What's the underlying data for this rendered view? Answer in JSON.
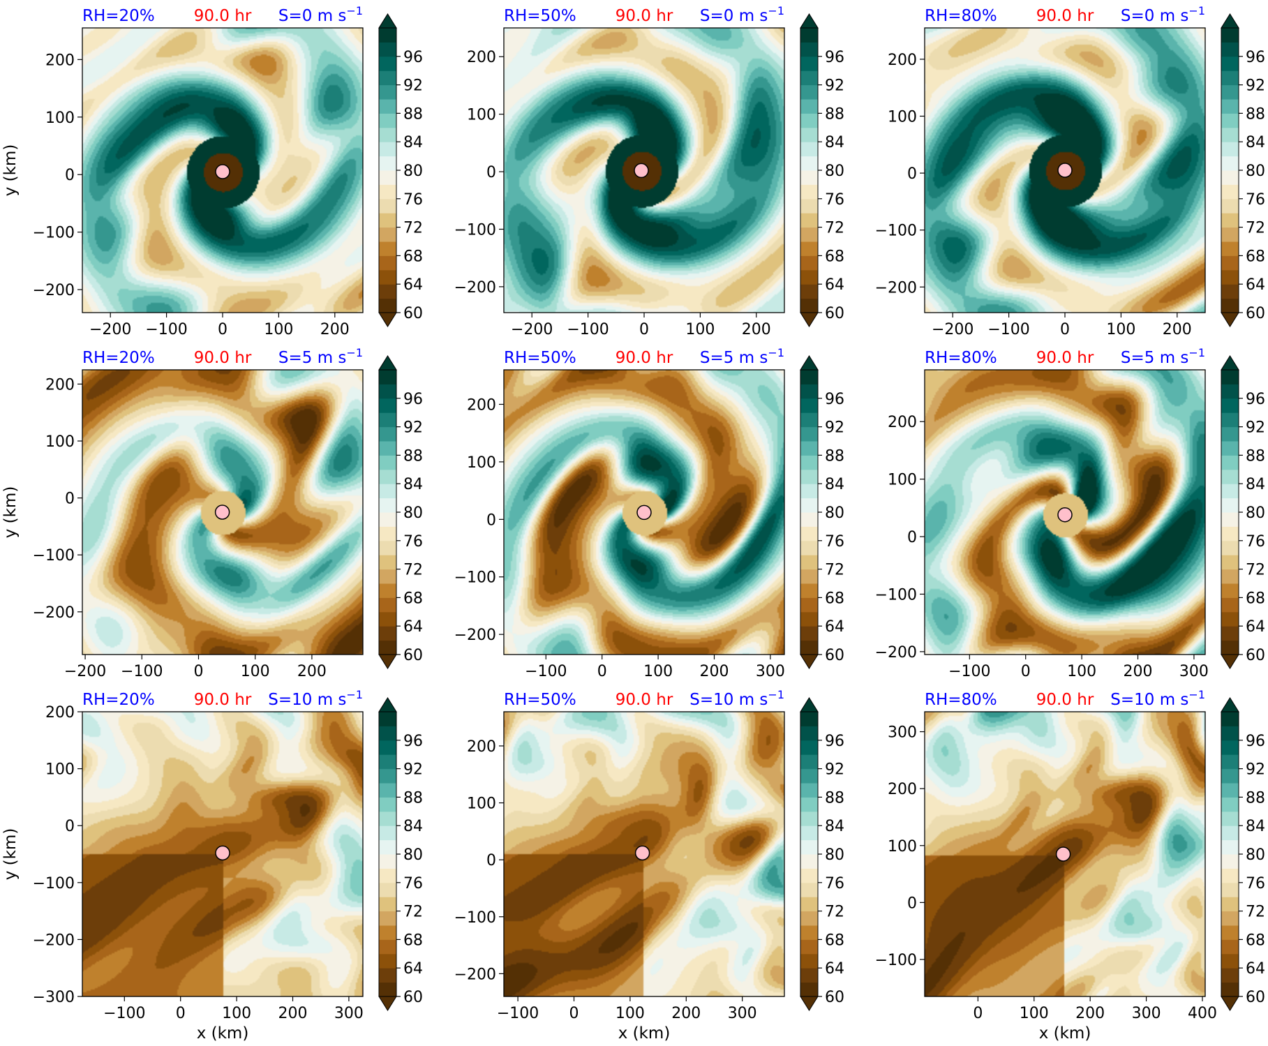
{
  "figure": {
    "time_label": "90.0 hr",
    "xlabel": "x (km)",
    "ylabel": "y (km)"
  },
  "colors": {
    "title_blue": "#0000ff",
    "title_red": "#ff0000",
    "colormap": [
      "#543005",
      "#6d3e0a",
      "#8c510a",
      "#a8651a",
      "#bf812d",
      "#d2a661",
      "#dfc27d",
      "#ecdcb0",
      "#f6e8c3",
      "#f5f2e6",
      "#e6f4f1",
      "#c7eae5",
      "#a6ddd2",
      "#80cdc1",
      "#5ab4ac",
      "#35978f",
      "#1c7f77",
      "#01665e",
      "#01524a",
      "#003c30"
    ]
  },
  "colorbar": {
    "ticks": [
      "60",
      "64",
      "68",
      "72",
      "76",
      "80",
      "84",
      "88",
      "92",
      "96"
    ],
    "min": 60,
    "max": 100,
    "step": 2,
    "extend": "both"
  },
  "chart_data": [
    {
      "type": "heatmap",
      "rh": "RH=20%",
      "shear": "S=0 m s",
      "shear_exp": "−1",
      "xlim": [
        -250,
        250
      ],
      "ylim": [
        -240,
        255
      ],
      "xticks": [
        -200,
        -100,
        0,
        100,
        200
      ],
      "yticks": [
        -200,
        -100,
        0,
        100,
        200
      ],
      "center": [
        0,
        5
      ],
      "pattern": "spiral",
      "band": 0.85,
      "core": 0.5,
      "env": 0.4,
      "seed": 1
    },
    {
      "type": "heatmap",
      "rh": "RH=50%",
      "shear": "S=0 m s",
      "shear_exp": "−1",
      "xlim": [
        -250,
        250
      ],
      "ylim": [
        -245,
        250
      ],
      "xticks": [
        -200,
        -100,
        0,
        100,
        200
      ],
      "yticks": [
        -200,
        -100,
        0,
        100,
        200
      ],
      "center": [
        -5,
        2
      ],
      "pattern": "spiral",
      "band": 0.9,
      "core": 0.55,
      "env": 0.45,
      "seed": 2
    },
    {
      "type": "heatmap",
      "rh": "RH=80%",
      "shear": "S=0 m s",
      "shear_exp": "−1",
      "xlim": [
        -250,
        250
      ],
      "ylim": [
        -245,
        255
      ],
      "xticks": [
        -200,
        -100,
        0,
        100,
        200
      ],
      "yticks": [
        -200,
        -100,
        0,
        100,
        200
      ],
      "center": [
        0,
        5
      ],
      "pattern": "spiral",
      "band": 0.9,
      "core": 0.6,
      "env": 0.55,
      "seed": 3
    },
    {
      "type": "heatmap",
      "rh": "RH=20%",
      "shear": "S=5 m s",
      "shear_exp": "−1",
      "xlim": [
        -205,
        290
      ],
      "ylim": [
        -275,
        225
      ],
      "xticks": [
        -200,
        -100,
        0,
        100,
        200
      ],
      "yticks": [
        -200,
        -100,
        0,
        100,
        200
      ],
      "center": [
        42,
        -25
      ],
      "pattern": "sheared",
      "band": 0.75,
      "core": 0.45,
      "env": 0.35,
      "seed": 4
    },
    {
      "type": "heatmap",
      "rh": "RH=50%",
      "shear": "S=5 m s",
      "shear_exp": "−1",
      "xlim": [
        -175,
        325
      ],
      "ylim": [
        -235,
        260
      ],
      "xticks": [
        -100,
        0,
        100,
        200,
        300
      ],
      "yticks": [
        -200,
        -100,
        0,
        100,
        200
      ],
      "center": [
        75,
        12
      ],
      "pattern": "sheared",
      "band": 0.88,
      "core": 0.55,
      "env": 0.5,
      "seed": 5
    },
    {
      "type": "heatmap",
      "rh": "RH=80%",
      "shear": "S=5 m s",
      "shear_exp": "−1",
      "xlim": [
        -180,
        320
      ],
      "ylim": [
        -205,
        290
      ],
      "xticks": [
        -100,
        0,
        100,
        200,
        300
      ],
      "yticks": [
        -200,
        -100,
        0,
        100,
        200
      ],
      "center": [
        70,
        38
      ],
      "pattern": "sheared",
      "band": 0.92,
      "core": 0.62,
      "env": 0.58,
      "seed": 6
    },
    {
      "type": "heatmap",
      "rh": "RH=20%",
      "shear": "S=10 m s",
      "shear_exp": "−1",
      "xlim": [
        -175,
        325
      ],
      "ylim": [
        -300,
        200
      ],
      "xticks": [
        -100,
        0,
        100,
        200,
        300
      ],
      "yticks": [
        -300,
        -200,
        -100,
        0,
        100,
        200
      ],
      "center": [
        75,
        -48
      ],
      "pattern": "strong",
      "band": 0.8,
      "core": 0.4,
      "env": 0.45,
      "seed": 7
    },
    {
      "type": "heatmap",
      "rh": "RH=50%",
      "shear": "S=10 m s",
      "shear_exp": "−1",
      "xlim": [
        -125,
        375
      ],
      "ylim": [
        -240,
        260
      ],
      "xticks": [
        -100,
        0,
        100,
        200,
        300
      ],
      "yticks": [
        -200,
        -100,
        0,
        100,
        200
      ],
      "center": [
        122,
        12
      ],
      "pattern": "strong",
      "band": 0.88,
      "core": 0.5,
      "env": 0.5,
      "seed": 8
    },
    {
      "type": "heatmap",
      "rh": "RH=80%",
      "shear": "S=10 m s",
      "shear_exp": "−1",
      "xlim": [
        -95,
        405
      ],
      "ylim": [
        -165,
        335
      ],
      "xticks": [
        0,
        100,
        200,
        300,
        400
      ],
      "yticks": [
        -100,
        0,
        100,
        200,
        300
      ],
      "center": [
        152,
        85
      ],
      "pattern": "strong",
      "band": 0.92,
      "core": 0.5,
      "env": 0.55,
      "seed": 9
    }
  ]
}
